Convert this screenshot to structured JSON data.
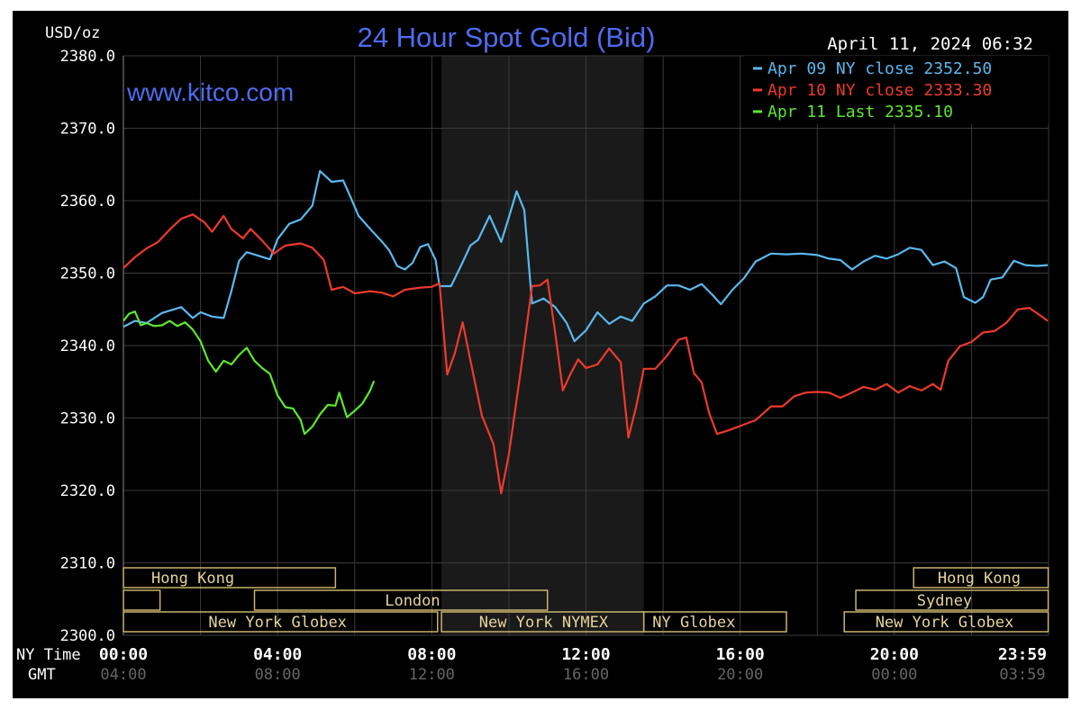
{
  "chart_data": {
    "type": "line",
    "title": "24 Hour Spot Gold (Bid)",
    "watermark": "www.kitco.com",
    "timestamp": "April 11, 2024 06:32",
    "ylabel": "USD/oz",
    "ylim": [
      2300,
      2380
    ],
    "y_ticks": [
      "2380.0",
      "2370.0",
      "2360.0",
      "2350.0",
      "2340.0",
      "2330.0",
      "2320.0",
      "2310.0",
      "2300.0"
    ],
    "x_row_labels": [
      "NY Time",
      "GMT"
    ],
    "x_ticks_ny": [
      "00:00",
      "04:00",
      "08:00",
      "12:00",
      "16:00",
      "20:00",
      "23:59"
    ],
    "x_ticks_gmt": [
      "04:00",
      "08:00",
      "12:00",
      "16:00",
      "20:00",
      "00:00",
      "03:59"
    ],
    "grid": true,
    "legend_position": "top-right",
    "colors": {
      "background": "#000000",
      "grid": "#3a3a3a",
      "axis_text": "#ffffff",
      "gmt_text": "#666666",
      "title": "#4e6cf0",
      "session_box": "#c9b46a",
      "session_text": "#e5d49a",
      "shade": "#1a1a1a"
    },
    "series": [
      {
        "name": "Apr 09 NY close 2352.50",
        "label": "Apr 09 NY close",
        "value": "2352.50",
        "color": "#5ab8ef",
        "points": [
          [
            0,
            2342.6
          ],
          [
            0.3,
            2343.4
          ],
          [
            0.6,
            2343.1
          ],
          [
            1.0,
            2344.5
          ],
          [
            1.5,
            2345.3
          ],
          [
            1.8,
            2343.8
          ],
          [
            2.0,
            2344.6
          ],
          [
            2.3,
            2344.0
          ],
          [
            2.6,
            2343.8
          ],
          [
            2.8,
            2347.5
          ],
          [
            3.0,
            2351.7
          ],
          [
            3.2,
            2352.9
          ],
          [
            3.5,
            2352.4
          ],
          [
            3.8,
            2351.9
          ],
          [
            4.0,
            2354.7
          ],
          [
            4.3,
            2356.8
          ],
          [
            4.6,
            2357.4
          ],
          [
            4.9,
            2359.3
          ],
          [
            5.1,
            2364.1
          ],
          [
            5.4,
            2362.6
          ],
          [
            5.7,
            2362.8
          ],
          [
            5.9,
            2360.4
          ],
          [
            6.1,
            2357.9
          ],
          [
            6.4,
            2356.1
          ],
          [
            6.7,
            2354.4
          ],
          [
            6.9,
            2353.1
          ],
          [
            7.1,
            2351.0
          ],
          [
            7.3,
            2350.5
          ],
          [
            7.5,
            2351.4
          ],
          [
            7.7,
            2353.6
          ],
          [
            7.9,
            2354.0
          ],
          [
            8.1,
            2351.8
          ],
          [
            8.2,
            2348.2
          ],
          [
            8.5,
            2348.2
          ],
          [
            8.8,
            2351.5
          ],
          [
            9.0,
            2353.8
          ],
          [
            9.2,
            2354.6
          ],
          [
            9.5,
            2357.9
          ],
          [
            9.8,
            2354.3
          ],
          [
            10.0,
            2357.7
          ],
          [
            10.2,
            2361.3
          ],
          [
            10.4,
            2358.7
          ],
          [
            10.6,
            2345.8
          ],
          [
            10.9,
            2346.5
          ],
          [
            11.2,
            2345.3
          ],
          [
            11.5,
            2343.1
          ],
          [
            11.7,
            2340.6
          ],
          [
            12.0,
            2342.1
          ],
          [
            12.3,
            2344.6
          ],
          [
            12.6,
            2343.0
          ],
          [
            12.9,
            2344.0
          ],
          [
            13.2,
            2343.4
          ],
          [
            13.5,
            2345.8
          ],
          [
            13.8,
            2346.8
          ],
          [
            14.1,
            2348.3
          ],
          [
            14.4,
            2348.3
          ],
          [
            14.7,
            2347.7
          ],
          [
            15.0,
            2348.5
          ],
          [
            15.3,
            2346.9
          ],
          [
            15.5,
            2345.7
          ],
          [
            15.8,
            2347.7
          ],
          [
            16.1,
            2349.3
          ],
          [
            16.4,
            2351.6
          ],
          [
            16.8,
            2352.7
          ],
          [
            17.2,
            2352.6
          ],
          [
            17.6,
            2352.7
          ],
          [
            18.0,
            2352.5
          ],
          [
            18.3,
            2352.0
          ],
          [
            18.6,
            2351.8
          ],
          [
            18.9,
            2350.5
          ],
          [
            19.2,
            2351.6
          ],
          [
            19.5,
            2352.4
          ],
          [
            19.8,
            2352.0
          ],
          [
            20.1,
            2352.6
          ],
          [
            20.4,
            2353.5
          ],
          [
            20.7,
            2353.2
          ],
          [
            21.0,
            2351.1
          ],
          [
            21.3,
            2351.6
          ],
          [
            21.6,
            2350.7
          ],
          [
            21.8,
            2346.7
          ],
          [
            22.1,
            2345.9
          ],
          [
            22.3,
            2346.7
          ],
          [
            22.5,
            2349.1
          ],
          [
            22.8,
            2349.4
          ],
          [
            23.1,
            2351.7
          ],
          [
            23.4,
            2351.1
          ],
          [
            23.7,
            2351.0
          ],
          [
            23.98,
            2351.1
          ]
        ]
      },
      {
        "name": "Apr 10 NY close 2333.30",
        "label": "Apr 10 NY close",
        "value": "2333.30",
        "color": "#ee3a2b",
        "points": [
          [
            0,
            2350.7
          ],
          [
            0.3,
            2352.2
          ],
          [
            0.6,
            2353.4
          ],
          [
            0.9,
            2354.3
          ],
          [
            1.2,
            2356.0
          ],
          [
            1.5,
            2357.5
          ],
          [
            1.8,
            2358.1
          ],
          [
            2.1,
            2357.0
          ],
          [
            2.3,
            2355.7
          ],
          [
            2.6,
            2357.9
          ],
          [
            2.8,
            2356.1
          ],
          [
            3.1,
            2354.8
          ],
          [
            3.3,
            2356.1
          ],
          [
            3.6,
            2354.5
          ],
          [
            3.9,
            2352.7
          ],
          [
            4.2,
            2353.8
          ],
          [
            4.6,
            2354.1
          ],
          [
            4.9,
            2353.5
          ],
          [
            5.2,
            2351.8
          ],
          [
            5.4,
            2347.7
          ],
          [
            5.7,
            2348.1
          ],
          [
            6.0,
            2347.2
          ],
          [
            6.4,
            2347.5
          ],
          [
            6.7,
            2347.3
          ],
          [
            7.0,
            2346.8
          ],
          [
            7.3,
            2347.7
          ],
          [
            7.7,
            2348.0
          ],
          [
            8.0,
            2348.1
          ],
          [
            8.2,
            2348.6
          ],
          [
            8.4,
            2336.0
          ],
          [
            8.6,
            2339.0
          ],
          [
            8.8,
            2343.2
          ],
          [
            9.0,
            2338.0
          ],
          [
            9.3,
            2330.3
          ],
          [
            9.6,
            2326.4
          ],
          [
            9.8,
            2319.6
          ],
          [
            10.0,
            2325.0
          ],
          [
            10.3,
            2336.3
          ],
          [
            10.6,
            2348.2
          ],
          [
            10.8,
            2348.3
          ],
          [
            11.0,
            2349.1
          ],
          [
            11.2,
            2341.8
          ],
          [
            11.4,
            2333.8
          ],
          [
            11.6,
            2336.1
          ],
          [
            11.8,
            2338.1
          ],
          [
            12.0,
            2336.9
          ],
          [
            12.3,
            2337.4
          ],
          [
            12.6,
            2339.6
          ],
          [
            12.9,
            2337.7
          ],
          [
            13.1,
            2327.3
          ],
          [
            13.3,
            2331.5
          ],
          [
            13.5,
            2336.8
          ],
          [
            13.8,
            2336.8
          ],
          [
            14.1,
            2338.6
          ],
          [
            14.4,
            2340.8
          ],
          [
            14.6,
            2341.1
          ],
          [
            14.8,
            2336.2
          ],
          [
            15.0,
            2334.9
          ],
          [
            15.2,
            2330.6
          ],
          [
            15.4,
            2327.8
          ],
          [
            15.7,
            2328.3
          ],
          [
            16.0,
            2328.9
          ],
          [
            16.4,
            2329.7
          ],
          [
            16.8,
            2331.6
          ],
          [
            17.1,
            2331.6
          ],
          [
            17.4,
            2333.0
          ],
          [
            17.7,
            2333.5
          ],
          [
            18.0,
            2333.6
          ],
          [
            18.3,
            2333.5
          ],
          [
            18.6,
            2332.8
          ],
          [
            18.9,
            2333.5
          ],
          [
            19.2,
            2334.3
          ],
          [
            19.5,
            2333.9
          ],
          [
            19.8,
            2334.7
          ],
          [
            20.1,
            2333.5
          ],
          [
            20.4,
            2334.4
          ],
          [
            20.7,
            2333.8
          ],
          [
            21.0,
            2334.7
          ],
          [
            21.2,
            2333.9
          ],
          [
            21.4,
            2337.9
          ],
          [
            21.7,
            2339.9
          ],
          [
            22.0,
            2340.5
          ],
          [
            22.3,
            2341.8
          ],
          [
            22.6,
            2342.0
          ],
          [
            22.9,
            2343.1
          ],
          [
            23.2,
            2345.0
          ],
          [
            23.5,
            2345.2
          ],
          [
            23.8,
            2344.1
          ],
          [
            23.98,
            2343.4
          ]
        ]
      },
      {
        "name": "Apr 11 Last 2335.10",
        "label": "Apr 11 Last",
        "value": "2335.10",
        "color": "#5ce82e",
        "points": [
          [
            0,
            2343.4
          ],
          [
            0.15,
            2344.4
          ],
          [
            0.3,
            2344.7
          ],
          [
            0.45,
            2342.8
          ],
          [
            0.6,
            2343.1
          ],
          [
            0.8,
            2342.7
          ],
          [
            1.0,
            2342.8
          ],
          [
            1.2,
            2343.4
          ],
          [
            1.4,
            2342.7
          ],
          [
            1.6,
            2343.2
          ],
          [
            1.8,
            2342.2
          ],
          [
            2.0,
            2340.6
          ],
          [
            2.2,
            2337.9
          ],
          [
            2.4,
            2336.4
          ],
          [
            2.6,
            2337.9
          ],
          [
            2.8,
            2337.4
          ],
          [
            3.0,
            2338.7
          ],
          [
            3.2,
            2339.7
          ],
          [
            3.4,
            2337.9
          ],
          [
            3.6,
            2336.9
          ],
          [
            3.8,
            2336.1
          ],
          [
            4.0,
            2333.1
          ],
          [
            4.2,
            2331.5
          ],
          [
            4.4,
            2331.3
          ],
          [
            4.6,
            2329.7
          ],
          [
            4.7,
            2327.8
          ],
          [
            4.9,
            2328.8
          ],
          [
            5.1,
            2330.5
          ],
          [
            5.3,
            2331.8
          ],
          [
            5.5,
            2331.7
          ],
          [
            5.6,
            2333.5
          ],
          [
            5.8,
            2330.1
          ],
          [
            6.0,
            2331.0
          ],
          [
            6.2,
            2332.0
          ],
          [
            6.4,
            2333.8
          ],
          [
            6.5,
            2335.1
          ]
        ]
      }
    ],
    "sessions": [
      {
        "label": "Hong Kong",
        "row": 0,
        "start": 0,
        "end": 5.5,
        "text_at": 1.8
      },
      {
        "label": "",
        "row": 1,
        "start": 0,
        "end": 0.95,
        "text_at": 0
      },
      {
        "label": "London",
        "row": 1,
        "start": 3.4,
        "end": 11.0,
        "text_at": 7.5
      },
      {
        "label": "New York Globex",
        "row": 2,
        "start": 0,
        "end": 8.15,
        "text_at": 4.0
      },
      {
        "label": "New York NYMEX",
        "row": 2,
        "start": 8.25,
        "end": 13.5,
        "text_at": 10.9
      },
      {
        "label": "NY Globex",
        "row": 2,
        "start": 13.5,
        "end": 17.2,
        "text_at": 14.8
      },
      {
        "label": "Hong Kong",
        "row": 0,
        "start": 20.5,
        "end": 23.99,
        "text_at": 22.2
      },
      {
        "label": "Sydney",
        "row": 1,
        "start": 19.0,
        "end": 23.99,
        "text_at": 21.3
      },
      {
        "label": "New York Globex",
        "row": 2,
        "start": 18.7,
        "end": 23.99,
        "text_at": 21.3
      }
    ],
    "shade_range": [
      8.25,
      13.5
    ]
  }
}
